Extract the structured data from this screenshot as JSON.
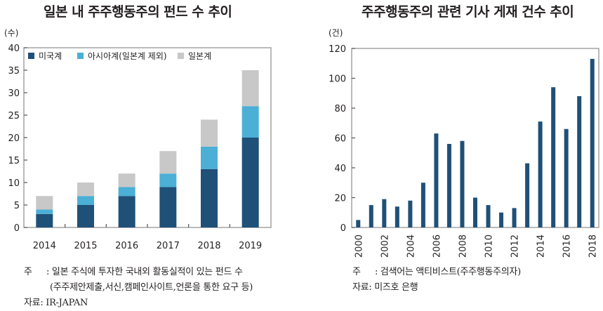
{
  "chart_data": [
    {
      "type": "bar",
      "stacked": true,
      "title": "일본 내 주주행동주의 펀드 수 추이",
      "ylabel": "(수)",
      "xlabel": "",
      "categories": [
        "2014",
        "2015",
        "2016",
        "2017",
        "2018",
        "2019"
      ],
      "series": [
        {
          "name": "미국계",
          "color": "#1f5078",
          "values": [
            3,
            5,
            7,
            9,
            13,
            20
          ]
        },
        {
          "name": "아시아계(일본계 제외)",
          "color": "#4bafd6",
          "values": [
            1,
            2,
            2,
            3,
            5,
            7
          ]
        },
        {
          "name": "일본계",
          "color": "#c8c8c8",
          "values": [
            3,
            3,
            3,
            5,
            6,
            8
          ]
        }
      ],
      "ylim": [
        0,
        40
      ],
      "yticks": [
        0,
        5,
        10,
        15,
        20,
        25,
        30,
        35,
        40
      ],
      "grid": false,
      "legend_position": "top-left"
    },
    {
      "type": "bar",
      "title": "주주행동주의 관련 기사 게재 건수 추이",
      "ylabel": "(건)",
      "xlabel": "",
      "categories": [
        "2000",
        "2001",
        "2002",
        "2003",
        "2004",
        "2005",
        "2006",
        "2007",
        "2008",
        "2009",
        "2010",
        "2011",
        "2012",
        "2013",
        "2014",
        "2015",
        "2016",
        "2017",
        "2018"
      ],
      "xtick_labels": [
        "2000",
        "2002",
        "2004",
        "2006",
        "2008",
        "2010",
        "2012",
        "2014",
        "2016",
        "2018"
      ],
      "series": [
        {
          "name": "기사 게재 건수",
          "color": "#1f5078",
          "values": [
            5,
            15,
            19,
            14,
            18,
            30,
            63,
            56,
            58,
            20,
            15,
            10,
            13,
            43,
            71,
            94,
            66,
            88,
            113
          ]
        }
      ],
      "ylim": [
        0,
        120
      ],
      "yticks": [
        0,
        20,
        40,
        60,
        80,
        100,
        120
      ],
      "grid": false
    }
  ],
  "notes": {
    "left": {
      "note_label": "주",
      "note_line1": ": 일본 주식에 투자한 국내외 활동실적이 있는 펀드 수",
      "note_line2": "(주주제안제출,서신,캠페인사이트,언론을 통한 요구 등)",
      "source": "자료: IR-JAPAN"
    },
    "right": {
      "note_label": "주",
      "note_line1": ": 검색어는 액티비스트(주주행동주의자)",
      "source": "자료: 미즈호 은행"
    }
  }
}
